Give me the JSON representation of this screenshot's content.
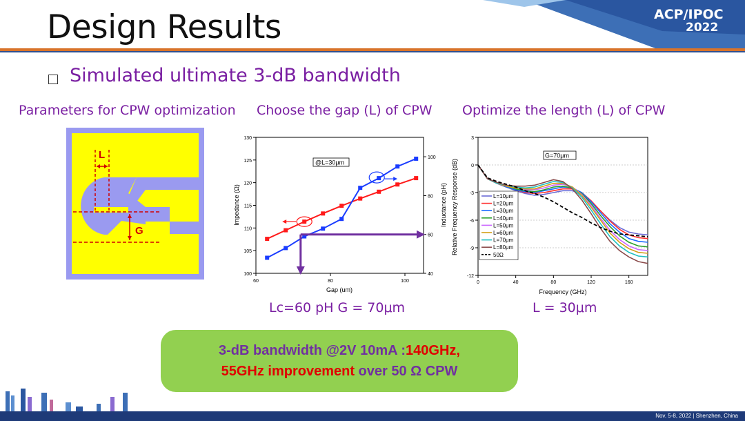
{
  "slide": {
    "title": "Design Results",
    "subtitle": "Simulated ultimate 3-dB bandwidth",
    "logo": {
      "line1": "ACP/IPOC",
      "line2": "2022"
    },
    "captions": {
      "left": "Parameters for CPW optimization",
      "middle": "Choose the gap (L) of CPW",
      "right": "Optimize the length (L) of CPW"
    },
    "results": {
      "middle": "Lc=60 pH G = 70μm",
      "right": "L = 30μm"
    },
    "summary": {
      "part1": "3-dB bandwidth @2V 10mA :",
      "part2": "140GHz,",
      "part3": "55GHz improvement",
      "part4": " over 50 Ω CPW"
    },
    "footer": "Nov. 5-8, 2022  |  Shenzhen, China"
  },
  "cpw_diagram": {
    "label_L": "L",
    "label_G": "G"
  },
  "colors": {
    "accent_orange": "#d8732a",
    "navy": "#1e3a78",
    "purple": "#7a1fa2",
    "green": "#92d050",
    "red": "#e00000"
  },
  "chart_data": [
    {
      "type": "line",
      "annotation": "@L=30μm",
      "xlabel": "Gap (um)",
      "ylabel": "Impedance (Ω)",
      "y2label": "Inductance (pH)",
      "xlim": [
        60,
        105
      ],
      "ylim": [
        100,
        130
      ],
      "y2lim": [
        40,
        110
      ],
      "xticks": [
        "60",
        "80",
        "100"
      ],
      "yticks": [
        "100",
        "105",
        "110",
        "115",
        "120",
        "125",
        "130"
      ],
      "y2ticks": [
        "40",
        "60",
        "80",
        "100"
      ],
      "series": [
        {
          "axis": "left",
          "color": "#ff1a1a",
          "x": [
            63,
            68,
            73,
            78,
            83,
            88,
            93,
            98,
            103
          ],
          "y": [
            107.6,
            109.5,
            111.4,
            113.2,
            114.9,
            116.5,
            118.0,
            119.6,
            121.0
          ]
        },
        {
          "axis": "right",
          "color": "#1a3cff",
          "x": [
            63,
            68,
            73,
            78,
            83,
            88,
            93,
            98,
            103
          ],
          "y": [
            48,
            53,
            59,
            63,
            68,
            84,
            89,
            95,
            99
          ]
        }
      ]
    },
    {
      "type": "line",
      "annotation": "G=70μm",
      "xlabel": "Frequency (GHz)",
      "ylabel": "Relative Frequency Response (dB)",
      "xlim": [
        0,
        180
      ],
      "ylim": [
        -12,
        3
      ],
      "xticks": [
        "0",
        "40",
        "80",
        "120",
        "160"
      ],
      "yticks": [
        "-12",
        "-9",
        "-6",
        "-3",
        "0",
        "3"
      ],
      "legend_position": "center-left",
      "x": [
        0,
        10,
        20,
        30,
        40,
        50,
        60,
        70,
        80,
        90,
        100,
        110,
        120,
        130,
        140,
        150,
        160,
        170,
        180
      ],
      "series": [
        {
          "name": "L=10μm",
          "color": "#6b6bd6",
          "y": [
            0,
            -1.5,
            -2.0,
            -2.4,
            -2.8,
            -3.1,
            -3.3,
            -3.2,
            -3.0,
            -2.8,
            -2.8,
            -3.2,
            -4.0,
            -5.0,
            -6.0,
            -6.8,
            -7.3,
            -7.5,
            -7.6
          ]
        },
        {
          "name": "L=20μm",
          "color": "#ff3030",
          "y": [
            0,
            -1.5,
            -2.0,
            -2.4,
            -2.7,
            -3.0,
            -3.1,
            -3.0,
            -2.8,
            -2.6,
            -2.6,
            -3.0,
            -3.9,
            -5.0,
            -6.1,
            -7.0,
            -7.6,
            -7.9,
            -8.0
          ]
        },
        {
          "name": "L=30μm",
          "color": "#1a6bff",
          "y": [
            0,
            -1.5,
            -2.0,
            -2.4,
            -2.7,
            -2.9,
            -3.0,
            -2.8,
            -2.6,
            -2.4,
            -2.5,
            -3.0,
            -4.0,
            -5.2,
            -6.4,
            -7.3,
            -8.0,
            -8.3,
            -8.4
          ]
        },
        {
          "name": "L=40μm",
          "color": "#2aa02a",
          "y": [
            0,
            -1.5,
            -2.0,
            -2.3,
            -2.6,
            -2.8,
            -2.9,
            -2.7,
            -2.4,
            -2.3,
            -2.5,
            -3.1,
            -4.2,
            -5.5,
            -6.7,
            -7.7,
            -8.4,
            -8.8,
            -8.9
          ]
        },
        {
          "name": "L=50μm",
          "color": "#cc66ff",
          "y": [
            0,
            -1.5,
            -2.0,
            -2.3,
            -2.5,
            -2.7,
            -2.7,
            -2.5,
            -2.2,
            -2.1,
            -2.4,
            -3.2,
            -4.4,
            -5.8,
            -7.1,
            -8.1,
            -8.8,
            -9.2,
            -9.3
          ]
        },
        {
          "name": "L=60μm",
          "color": "#d4a017",
          "y": [
            0,
            -1.5,
            -2.0,
            -2.3,
            -2.5,
            -2.6,
            -2.6,
            -2.3,
            -2.0,
            -2.0,
            -2.4,
            -3.3,
            -4.6,
            -6.0,
            -7.4,
            -8.4,
            -9.1,
            -9.5,
            -9.6
          ]
        },
        {
          "name": "L=70μm",
          "color": "#20c0c0",
          "y": [
            0,
            -1.5,
            -2.0,
            -2.2,
            -2.4,
            -2.5,
            -2.4,
            -2.1,
            -1.8,
            -1.9,
            -2.5,
            -3.5,
            -4.9,
            -6.4,
            -7.8,
            -8.8,
            -9.5,
            -9.9,
            -10.0
          ]
        },
        {
          "name": "L=80μm",
          "color": "#8b4c4c",
          "y": [
            0,
            -1.5,
            -1.9,
            -2.2,
            -2.3,
            -2.3,
            -2.2,
            -1.9,
            -1.6,
            -1.8,
            -2.6,
            -3.8,
            -5.3,
            -6.9,
            -8.3,
            -9.3,
            -10.0,
            -10.5,
            -10.7
          ]
        },
        {
          "name": "50Ω",
          "color": "#000000",
          "dashed": true,
          "y": [
            0,
            -1.4,
            -1.8,
            -2.1,
            -2.4,
            -2.8,
            -3.1,
            -3.5,
            -4.0,
            -4.6,
            -5.2,
            -5.7,
            -6.3,
            -6.8,
            -7.2,
            -7.5,
            -7.6,
            -7.7,
            -7.8
          ]
        }
      ]
    }
  ]
}
